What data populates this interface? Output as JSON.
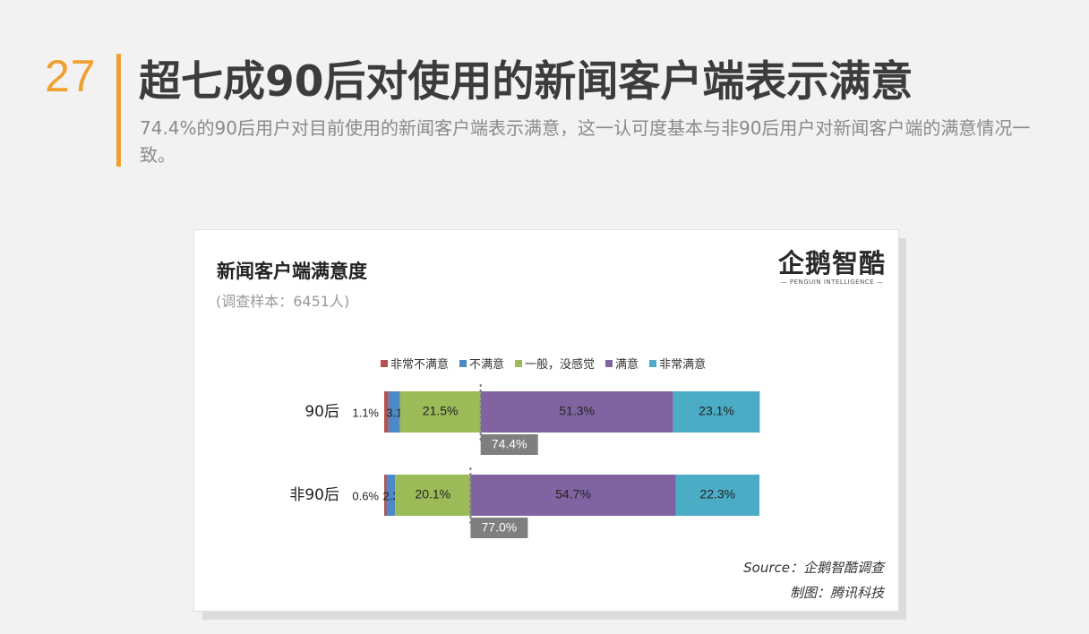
{
  "header": {
    "slide_number": "27",
    "title": "超七成90后对使用的新闻客户端表示满意",
    "subtitle": "74.4%的90后用户对目前使用的新闻客户端表示满意，这一认可度基本与非90后用户对新闻客户端的满意情况一致。"
  },
  "card": {
    "logo_main": "企鹅智酷",
    "logo_sub": "— PENGUIN INTELLIGENCE —",
    "source": "Source：企鹅智酷调查",
    "maker": "制图：腾讯科技"
  },
  "chart_data": {
    "type": "bar",
    "orientation": "horizontal",
    "stacked": true,
    "title": "新闻客户端满意度",
    "subtitle": "(调查样本：6451人)",
    "categories": [
      "90后",
      "非90后"
    ],
    "series": [
      {
        "name": "非常不满意",
        "values": [
          1.1,
          0.6
        ],
        "labels": [
          "1.1%",
          "0.6%"
        ]
      },
      {
        "name": "不满意",
        "values": [
          3.1,
          2.3
        ],
        "labels": [
          "3.1%",
          "2.3%"
        ]
      },
      {
        "name": "一般，没感觉",
        "values": [
          21.5,
          20.1
        ],
        "labels": [
          "21.5%",
          "20.1%"
        ]
      },
      {
        "name": "满意",
        "values": [
          51.3,
          54.7
        ],
        "labels": [
          "51.3%",
          "54.7%"
        ]
      },
      {
        "name": "非常满意",
        "values": [
          23.1,
          22.3
        ],
        "labels": [
          "23.1%",
          "22.3%"
        ]
      }
    ],
    "satisfied_totals": [
      74.4,
      77.0
    ],
    "satisfied_total_labels": [
      "74.4%",
      "77.0%"
    ],
    "xlim": [
      0,
      100
    ],
    "legend_position": "top",
    "grid": false,
    "colors": [
      "#b5514e",
      "#4f88c6",
      "#9bbb59",
      "#8064a2",
      "#4bacc6"
    ],
    "total_box_color": "#7f7f7f"
  }
}
